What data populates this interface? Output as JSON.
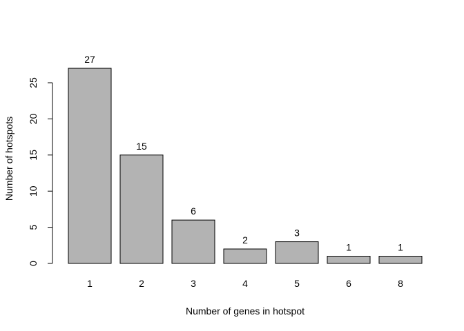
{
  "chart_data": {
    "type": "bar",
    "title": "",
    "xlabel": "Number of genes in hotspot",
    "ylabel": "Number of hotspots",
    "categories": [
      "1",
      "2",
      "3",
      "4",
      "5",
      "6",
      "8"
    ],
    "values": [
      27,
      15,
      6,
      2,
      3,
      1,
      1
    ],
    "data_labels": [
      "27",
      "15",
      "6",
      "2",
      "3",
      "1",
      "1"
    ],
    "ylim": [
      0,
      27
    ],
    "yticks": [
      0,
      5,
      10,
      15,
      20,
      25
    ],
    "ytick_labels": [
      "0",
      "5",
      "10",
      "15",
      "20",
      "25"
    ],
    "grid": false,
    "legend": "none",
    "colors": {
      "bar_fill": "#b3b3b3",
      "bar_stroke": "#000000",
      "background": "#ffffff"
    }
  }
}
